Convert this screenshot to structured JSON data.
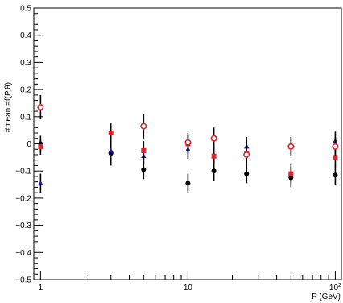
{
  "chart_data": {
    "type": "scatter",
    "title": "",
    "xlabel": "P (GeV)",
    "ylabel": "#mean =f(P,θ)",
    "x_scale": "log",
    "xlim": [
      0.9,
      110
    ],
    "ylim": [
      -0.5,
      0.5
    ],
    "grid": false,
    "legend": "none",
    "x_ticks": [
      {
        "value": 1,
        "label": "1"
      },
      {
        "value": 10,
        "label": "10"
      },
      {
        "value": 100,
        "label": "10",
        "exponent": "2"
      }
    ],
    "y_ticks": [
      {
        "value": -0.5,
        "label": "−0.5"
      },
      {
        "value": -0.4,
        "label": "−0.4"
      },
      {
        "value": -0.3,
        "label": "−0.3"
      },
      {
        "value": -0.2,
        "label": "−0.2"
      },
      {
        "value": -0.1,
        "label": "−0.1"
      },
      {
        "value": 0,
        "label": "0"
      },
      {
        "value": 0.1,
        "label": "0.1"
      },
      {
        "value": 0.2,
        "label": "0.2"
      },
      {
        "value": 0.3,
        "label": "0.3"
      },
      {
        "value": 0.4,
        "label": "0.4"
      },
      {
        "value": 0.5,
        "label": "0.5"
      }
    ],
    "series": [
      {
        "marker": "filled-circle",
        "color": "#000000",
        "x": [
          1,
          3,
          5,
          10,
          15,
          25,
          50,
          100
        ],
        "y": [
          0.0,
          -0.035,
          -0.095,
          -0.145,
          -0.1,
          -0.11,
          -0.125,
          -0.115
        ],
        "err": [
          0.03,
          0.045,
          0.035,
          0.035,
          0.035,
          0.035,
          0.035,
          0.035
        ]
      },
      {
        "marker": "filled-triangle",
        "color": "#1a1aa6",
        "x": [
          1,
          3,
          5,
          10,
          15,
          25,
          50,
          100
        ],
        "y": [
          -0.145,
          -0.025,
          -0.045,
          -0.02,
          -0.045,
          -0.01,
          -0.01,
          0.01
        ],
        "err": [
          0.035,
          0.03,
          0.03,
          0.035,
          0.035,
          0.035,
          0.035,
          0.035
        ]
      },
      {
        "marker": "filled-square",
        "color": "#e8202a",
        "x": [
          1,
          3,
          5,
          10,
          15,
          25,
          50,
          100
        ],
        "y": [
          -0.01,
          0.04,
          -0.025,
          0.0,
          -0.045,
          -0.035,
          -0.11,
          -0.05
        ],
        "err": [
          0.03,
          0.035,
          0.035,
          0.035,
          0.035,
          0.035,
          0.035,
          0.035
        ]
      },
      {
        "marker": "open-circle",
        "color": "#e8202a",
        "x": [
          1,
          5,
          10,
          15,
          25,
          50,
          100
        ],
        "y": [
          0.135,
          0.065,
          0.005,
          0.02,
          -0.04,
          -0.01,
          -0.01
        ],
        "err": [
          0.045,
          0.045,
          0.035,
          0.04,
          0.035,
          0.035,
          0.035
        ]
      }
    ]
  }
}
